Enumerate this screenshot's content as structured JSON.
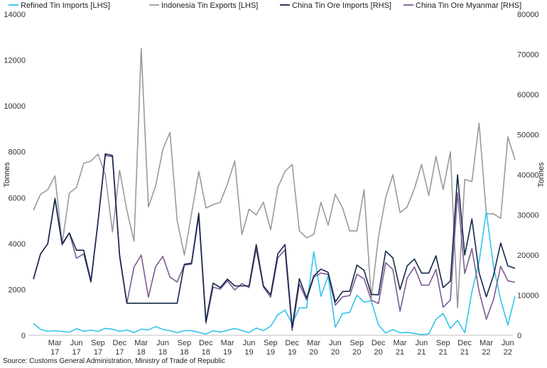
{
  "chart_data": {
    "type": "line",
    "ylabel": "Tonnes",
    "y2label": "Tonnes",
    "ylim": [
      0,
      14000
    ],
    "y2lim": [
      0,
      80000
    ],
    "yticks": [
      "0",
      "2000",
      "4000",
      "6000",
      "8000",
      "10000",
      "12000",
      "14000"
    ],
    "y2ticks": [
      "0",
      "10000",
      "20000",
      "30000",
      "40000",
      "50000",
      "60000",
      "70000",
      "80000"
    ],
    "grid": false,
    "legend_position": "top",
    "x_tick_labels": [
      [
        "Mar",
        "17"
      ],
      [
        "Jun",
        "17"
      ],
      [
        "Sep",
        "17"
      ],
      [
        "Dec",
        "17"
      ],
      [
        "Mar",
        "18"
      ],
      [
        "Jun",
        "18"
      ],
      [
        "Sep",
        "18"
      ],
      [
        "Dec",
        "18"
      ],
      [
        "Mar",
        "19"
      ],
      [
        "Jun",
        "19"
      ],
      [
        "Sep",
        "19"
      ],
      [
        "Dec",
        "19"
      ],
      [
        "Mar",
        "20"
      ],
      [
        "Jun",
        "20"
      ],
      [
        "Sep",
        "20"
      ],
      [
        "Dec",
        "20"
      ],
      [
        "Mar",
        "21"
      ],
      [
        "Jun",
        "21"
      ],
      [
        "Sep",
        "21"
      ],
      [
        "Dec",
        "21"
      ],
      [
        "Mar",
        "22"
      ],
      [
        "Jun",
        "22"
      ]
    ],
    "x": [
      "2017-01",
      "2017-02",
      "2017-03",
      "2017-04",
      "2017-05",
      "2017-06",
      "2017-07",
      "2017-08",
      "2017-09",
      "2017-10",
      "2017-11",
      "2017-12",
      "2018-01",
      "2018-02",
      "2018-03",
      "2018-04",
      "2018-05",
      "2018-06",
      "2018-07",
      "2018-08",
      "2018-09",
      "2018-10",
      "2018-11",
      "2018-12",
      "2019-01",
      "2019-02",
      "2019-03",
      "2019-04",
      "2019-05",
      "2019-06",
      "2019-07",
      "2019-08",
      "2019-09",
      "2019-10",
      "2019-11",
      "2019-12",
      "2020-01",
      "2020-02",
      "2020-03",
      "2020-04",
      "2020-05",
      "2020-06",
      "2020-07",
      "2020-08",
      "2020-09",
      "2020-10",
      "2020-11",
      "2020-12",
      "2021-01",
      "2021-02",
      "2021-03",
      "2021-04",
      "2021-05",
      "2021-06",
      "2021-07",
      "2021-08",
      "2021-09",
      "2021-10",
      "2021-11",
      "2021-12",
      "2022-01",
      "2022-02",
      "2022-03",
      "2022-04",
      "2022-05",
      "2022-06",
      "2022-07",
      "2022-08"
    ],
    "series": [
      {
        "name": "Refined Tin Imports [LHS]",
        "axis": "left",
        "color": "#33c5e8",
        "values": [
          520,
          260,
          170,
          200,
          170,
          140,
          290,
          170,
          230,
          170,
          300,
          270,
          170,
          230,
          120,
          270,
          240,
          380,
          260,
          200,
          120,
          200,
          200,
          130,
          50,
          200,
          140,
          220,
          300,
          210,
          120,
          320,
          200,
          400,
          900,
          1100,
          500,
          1200,
          1200,
          3650,
          1700,
          2600,
          350,
          950,
          1000,
          1750,
          1450,
          1500,
          450,
          100,
          250,
          110,
          130,
          80,
          30,
          60,
          700,
          950,
          300,
          650,
          120,
          1900,
          3200,
          5400,
          3000,
          1550,
          450,
          1700
        ]
      },
      {
        "name": "Indonesia Tin Exports [LHS]",
        "axis": "left",
        "color": "#9a9a9a",
        "values": [
          5450,
          6150,
          6350,
          6950,
          4000,
          6200,
          6450,
          7500,
          7600,
          7900,
          7000,
          4500,
          7200,
          5450,
          4100,
          12500,
          5600,
          6500,
          8100,
          8850,
          5000,
          3500,
          5300,
          7150,
          5550,
          5700,
          5800,
          6600,
          7600,
          4400,
          5500,
          5250,
          5800,
          4600,
          6450,
          7150,
          7450,
          4550,
          4250,
          4400,
          5800,
          4800,
          6150,
          5550,
          4550,
          4550,
          6350,
          1600,
          4300,
          6000,
          7000,
          5350,
          5600,
          6400,
          7450,
          6100,
          7800,
          6350,
          8000,
          1200,
          6800,
          6700,
          9250,
          5300,
          5300,
          5100,
          8650,
          7650
        ]
      },
      {
        "name": "China Tin Ore Imports [RHS]",
        "axis": "right",
        "color": "#14284b",
        "values": [
          14000,
          20300,
          22800,
          34100,
          22800,
          25500,
          21200,
          21200,
          13500,
          28500,
          45200,
          44800,
          20000,
          8000,
          8000,
          8000,
          8000,
          8000,
          8000,
          8000,
          8000,
          17700,
          18000,
          30400,
          3500,
          13000,
          11900,
          14000,
          12300,
          12300,
          12300,
          22600,
          12300,
          10100,
          20300,
          22600,
          2000,
          14100,
          9300,
          14800,
          16500,
          15700,
          8300,
          10900,
          11000,
          17500,
          16200,
          10200,
          10100,
          21000,
          19300,
          11400,
          17300,
          19000,
          15500,
          15500,
          19800,
          11900,
          13500,
          40000,
          20000,
          29000,
          15600,
          9600,
          14900,
          23000,
          17300,
          16700
        ]
      },
      {
        "name": "China Tin Ore Myanmar [RHS]",
        "axis": "right",
        "color": "#7d5b93",
        "values": [
          14000,
          20300,
          22800,
          33800,
          22500,
          25500,
          19200,
          20300,
          13200,
          28500,
          44800,
          44500,
          19500,
          8000,
          17000,
          20000,
          9500,
          17100,
          19700,
          14500,
          13300,
          17500,
          17700,
          29600,
          3000,
          12000,
          11500,
          13600,
          11300,
          12900,
          11900,
          21500,
          12000,
          9500,
          19300,
          21300,
          1200,
          12800,
          8800,
          14500,
          15500,
          15200,
          7500,
          9600,
          9900,
          15200,
          14100,
          8800,
          7900,
          18100,
          16400,
          6000,
          14300,
          17000,
          12500,
          12500,
          16400,
          7000,
          8800,
          35500,
          15400,
          21600,
          11000,
          4000,
          8900,
          17200,
          13600,
          13200
        ]
      }
    ]
  },
  "source": "Source: Customs General Administration, Ministry of Trade of Republic"
}
